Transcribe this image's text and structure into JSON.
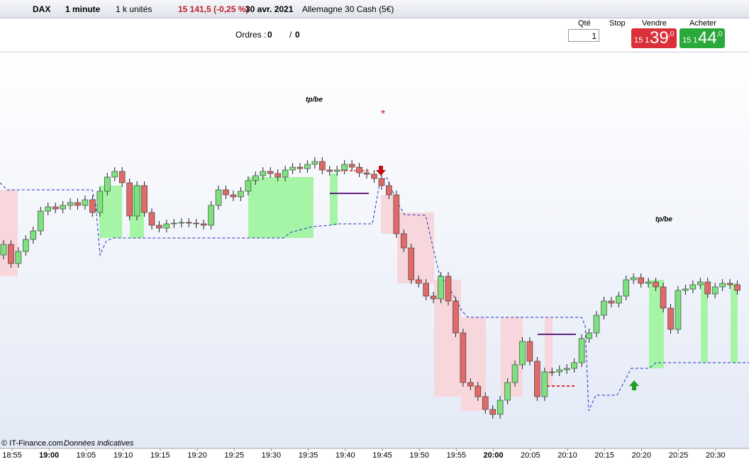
{
  "toolbar": {
    "instrument": "DAX",
    "period": "1 minute",
    "units": "1 k unités",
    "quote": "15 141,5 (-0,25 %)",
    "date": "30 avr. 2021",
    "market": "Allemagne 30 Cash (5€)"
  },
  "orders": {
    "label": "Ordres :",
    "count1": "0",
    "sep": "/",
    "count2": "0"
  },
  "ticket": {
    "qty_label": "Qté",
    "qty": "1",
    "stop_label": "Stop",
    "sell_label": "Vendre",
    "sell_prefix": "15 1",
    "sell_big": "39",
    "sell_dec": ",0",
    "buy_label": "Acheter",
    "buy_prefix": "15 1",
    "buy_big": "44",
    "buy_dec": ",0"
  },
  "chart": {
    "annotations": [
      "tp/be",
      "*",
      "tp/be"
    ],
    "copyright": "© IT-Finance.com",
    "note": "Données indicatives",
    "times": [
      "18:55",
      "19:00",
      "19:05",
      "19:10",
      "19:15",
      "19:20",
      "19:25",
      "19:30",
      "19:35",
      "19:40",
      "19:45",
      "19:50",
      "19:55",
      "20:00",
      "20:05",
      "20:10",
      "20:15",
      "20:20",
      "20:25",
      "20:30"
    ]
  }
}
